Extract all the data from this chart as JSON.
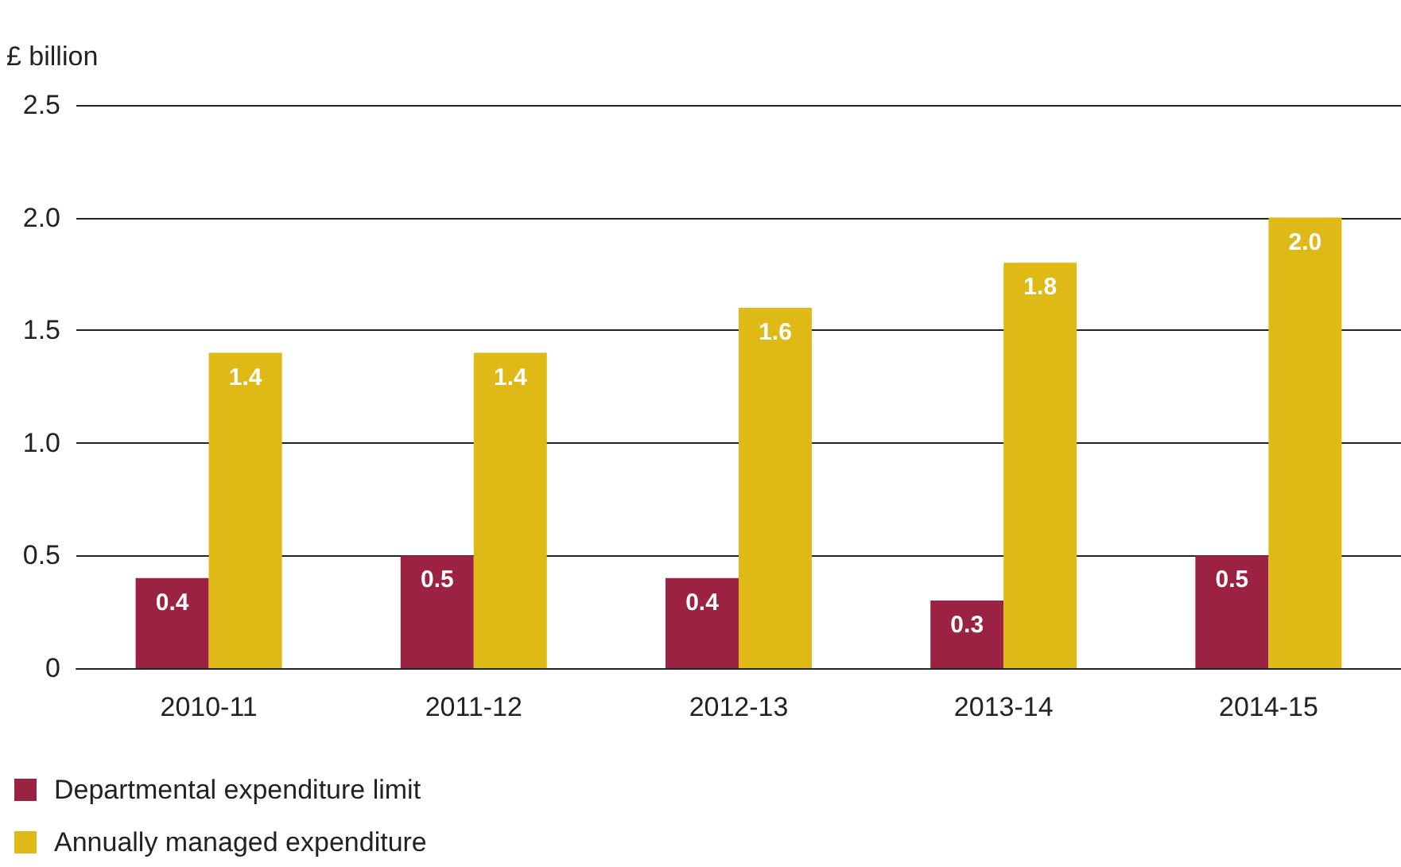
{
  "chart_data": {
    "type": "bar",
    "ylabel": "£ billion",
    "categories": [
      "2010-11",
      "2011-12",
      "2012-13",
      "2013-14",
      "2014-15"
    ],
    "series": [
      {
        "name": "Departmental expenditure limit",
        "color": "#9b2242",
        "values": [
          0.4,
          0.5,
          0.4,
          0.3,
          0.5
        ],
        "value_labels": [
          "0.4",
          "0.5",
          "0.4",
          "0.3",
          "0.5"
        ]
      },
      {
        "name": "Annually managed expenditure",
        "color": "#dfb916",
        "values": [
          1.4,
          1.4,
          1.6,
          1.8,
          2.0
        ],
        "value_labels": [
          "1.4",
          "1.4",
          "1.6",
          "1.8",
          "2.0"
        ]
      }
    ],
    "ylim": [
      0,
      2.5
    ],
    "yticks": [
      0,
      {
        "value": 0.5,
        "label": "0.5"
      },
      {
        "value": 1,
        "label": "1.0"
      },
      {
        "value": 1.5,
        "label": "1.5"
      },
      {
        "value": 2,
        "label": "2.0"
      },
      {
        "value": 2.5,
        "label": "2.5"
      }
    ],
    "grid": "y",
    "legend": "bottom left"
  }
}
